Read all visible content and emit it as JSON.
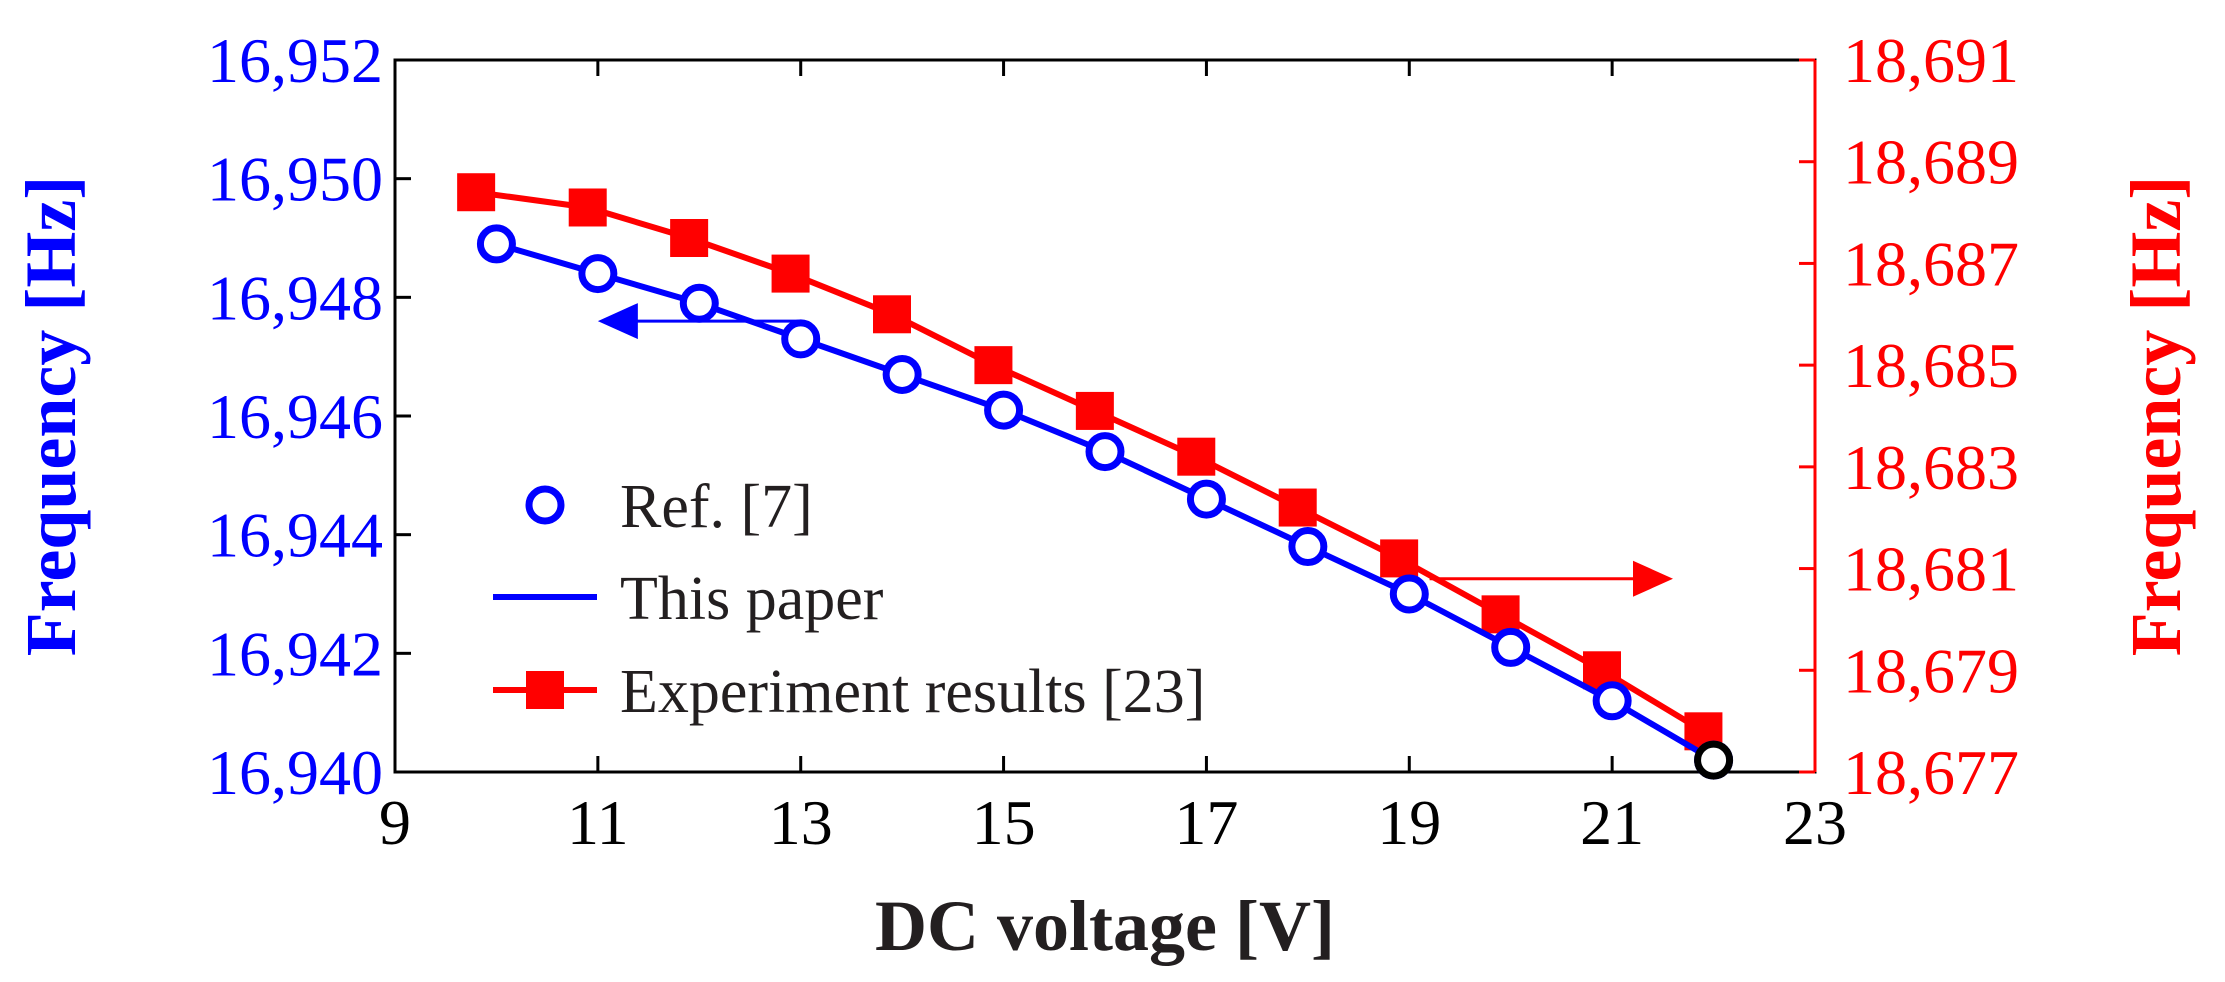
{
  "chart_data": {
    "type": "line",
    "x_axis": {
      "label": "DC voltage [V]",
      "range": [
        9,
        23
      ],
      "ticks": [
        9,
        11,
        13,
        15,
        17,
        19,
        21,
        23
      ],
      "tick_labels": [
        "9",
        "11",
        "13",
        "15",
        "17",
        "19",
        "21",
        "23"
      ]
    },
    "y_axis_left": {
      "label": "Frequency [Hz]",
      "color": "#0000ff",
      "range": [
        16940,
        16952
      ],
      "ticks": [
        16940,
        16942,
        16944,
        16946,
        16948,
        16950,
        16952
      ],
      "tick_labels": [
        "16,940",
        "16,942",
        "16,944",
        "16,946",
        "16,948",
        "16,950",
        "16,952"
      ]
    },
    "y_axis_right": {
      "label": "Frequency [Hz]",
      "color": "#ff0000",
      "range": [
        18677,
        18691
      ],
      "ticks": [
        18677,
        18679,
        18681,
        18683,
        18685,
        18687,
        18689,
        18691
      ],
      "tick_labels": [
        "18,677",
        "18,679",
        "18,681",
        "18,683",
        "18,685",
        "18,687",
        "18,689",
        "18,691"
      ]
    },
    "series": [
      {
        "name": "Ref. [7]",
        "axis": "left",
        "color": "#0000ff",
        "marker": "open-circle",
        "x": [
          10,
          11,
          12,
          13,
          14,
          15,
          16,
          17,
          18,
          19,
          20,
          21,
          22
        ],
        "y": [
          16948.9,
          16948.4,
          16947.9,
          16947.3,
          16946.7,
          16946.1,
          16945.4,
          16944.6,
          16943.8,
          16943.0,
          16942.1,
          16941.2,
          16940.2
        ]
      },
      {
        "name": "This paper",
        "axis": "left",
        "color": "#0000ff",
        "marker": "none",
        "x": [
          10,
          11,
          12,
          13,
          14,
          15,
          16,
          17,
          18,
          19,
          20,
          21,
          22
        ],
        "y": [
          16948.9,
          16948.4,
          16947.9,
          16947.3,
          16946.7,
          16946.1,
          16945.4,
          16944.6,
          16943.8,
          16943.0,
          16942.1,
          16941.2,
          16940.2
        ]
      },
      {
        "name": "Experiment results [23]",
        "axis": "right",
        "color": "#ff0000",
        "marker": "filled-square",
        "x": [
          9.8,
          10.9,
          11.9,
          12.9,
          13.9,
          14.9,
          15.9,
          16.9,
          17.9,
          18.9,
          19.9,
          20.9,
          21.9
        ],
        "y": [
          18688.4,
          18688.1,
          18687.5,
          18686.8,
          18686.0,
          18685.0,
          18684.1,
          18683.2,
          18682.2,
          18681.2,
          18680.1,
          18679.0,
          18677.8
        ]
      }
    ],
    "legend": {
      "placement": "lower-left",
      "entries": [
        "Ref. [7]",
        "This paper",
        "Experiment results [23]"
      ]
    },
    "annotations": [
      {
        "type": "arrow",
        "direction": "left",
        "color": "#0000ff",
        "meaning": "left axis",
        "from": {
          "x": 13,
          "y": 16947.6
        },
        "to": {
          "x": 11,
          "y": 16947.6
        }
      },
      {
        "type": "arrow",
        "direction": "right",
        "color": "#ff0000",
        "meaning": "right axis",
        "from": {
          "x": 19.2,
          "y": 18680.8
        },
        "to": {
          "x": 21.6,
          "y": 18680.8
        }
      }
    ],
    "highlight_point": {
      "x": 22,
      "y": 16940.2,
      "color": "#000000"
    },
    "grid": false
  }
}
